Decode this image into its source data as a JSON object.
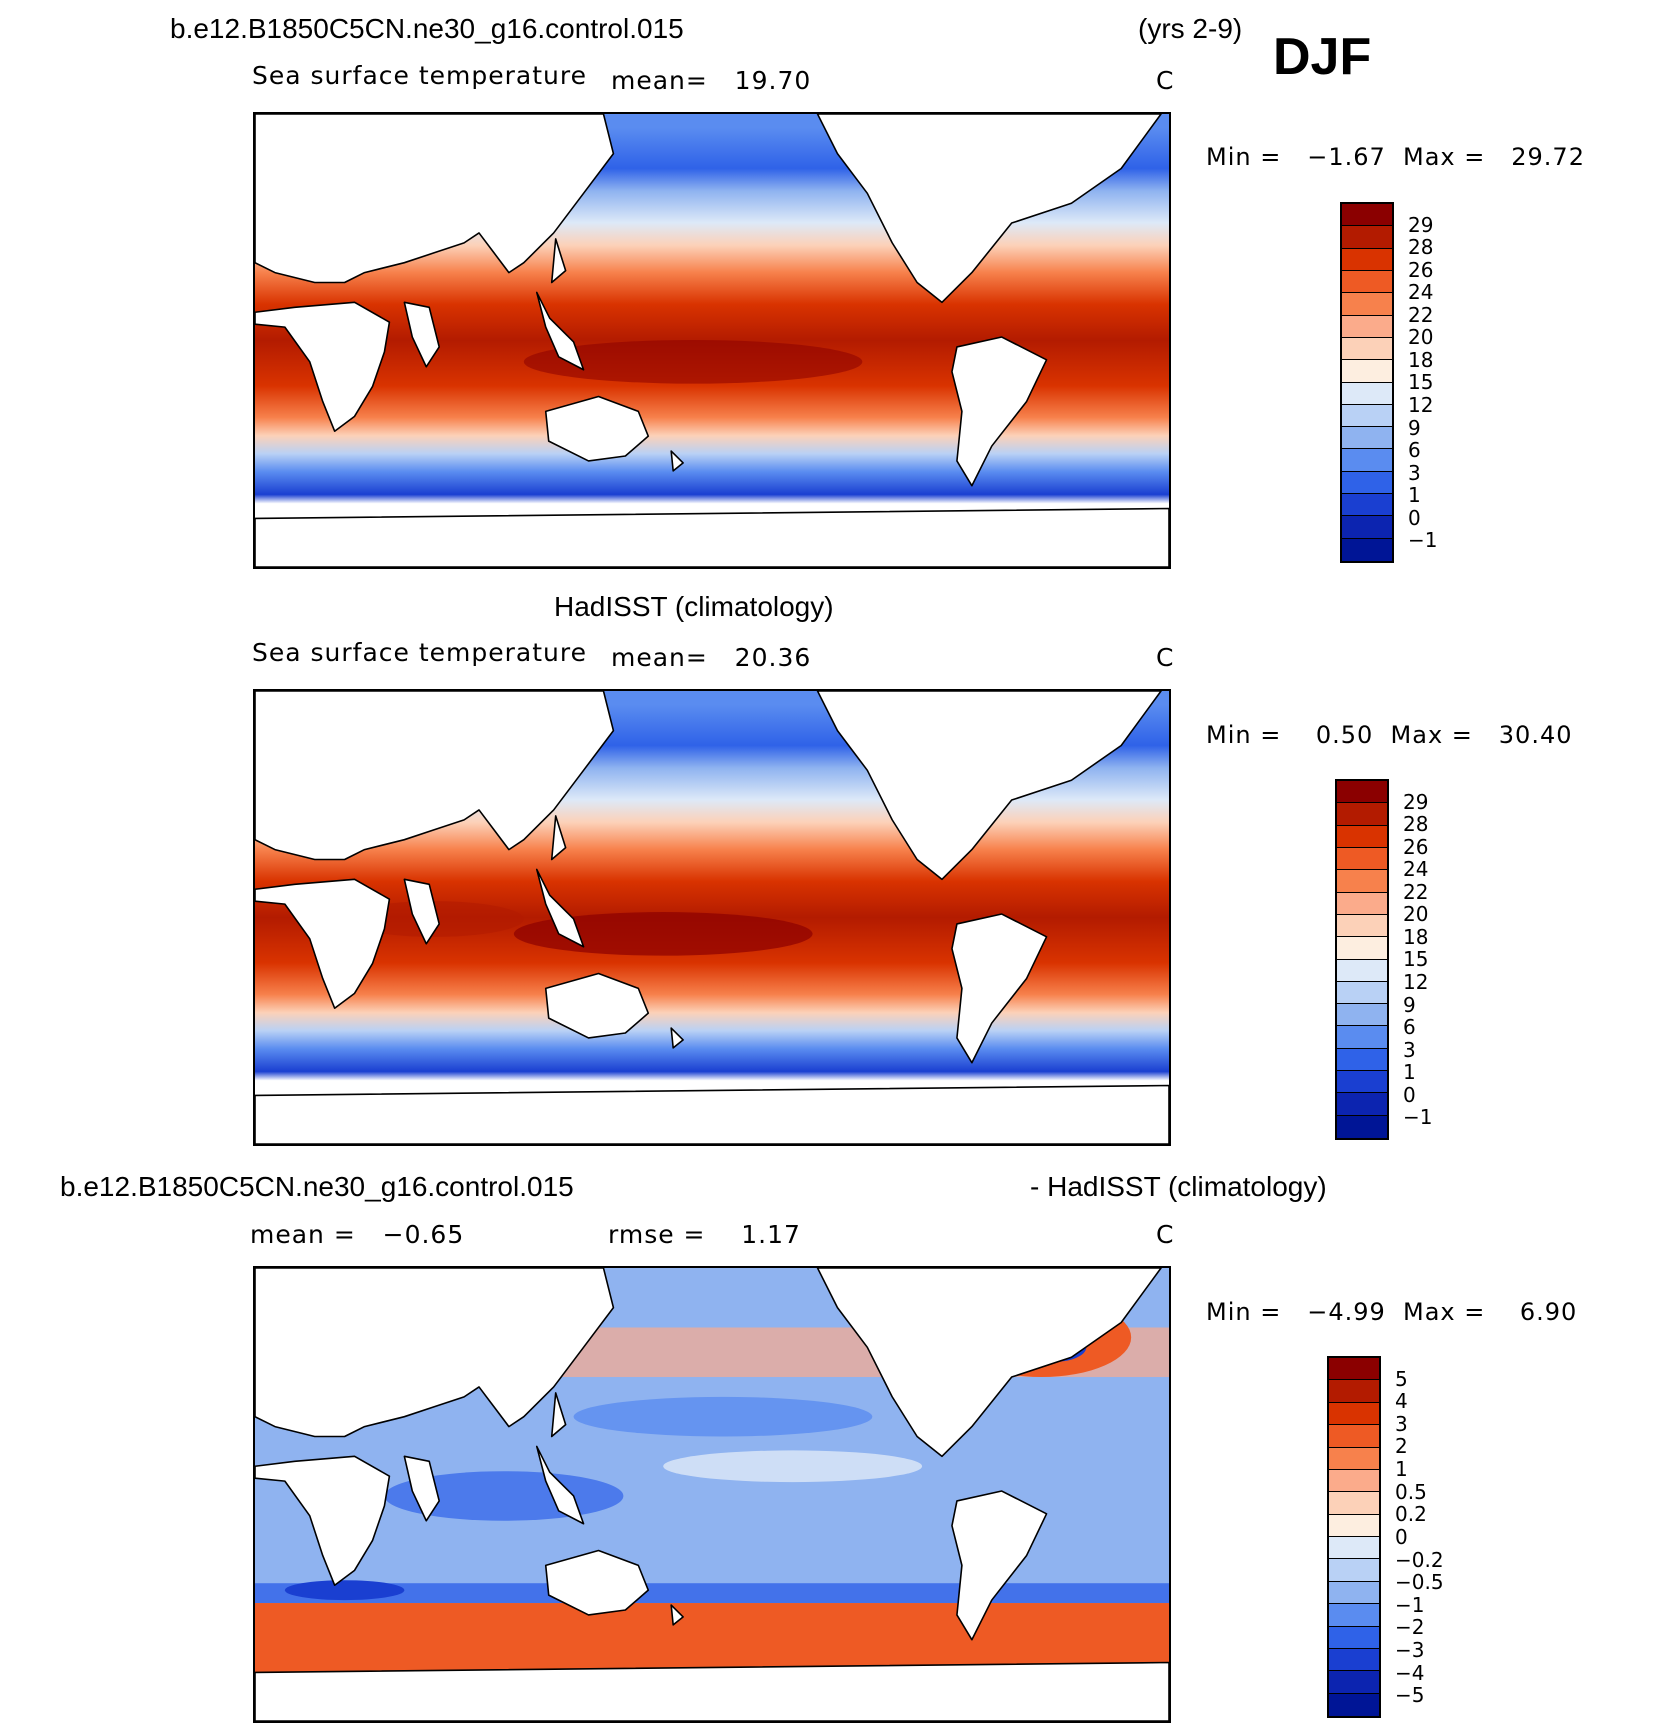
{
  "header": {
    "case_name": "b.e12.B1850C5CN.ne30_g16.control.015",
    "years": "(yrs 2-9)",
    "season": "DJF"
  },
  "panels": [
    {
      "id": "model",
      "title": "",
      "variable": "Sea surface temperature",
      "stat_text": "mean=   19.70",
      "units": "C",
      "minmax_text": "Min =   −1.67  Max =   29.72",
      "colorbar": {
        "colors": [
          "#8b0000",
          "#b31b00",
          "#d93300",
          "#ee5a24",
          "#f7814c",
          "#fbab8b",
          "#fcd1b8",
          "#fdeee0",
          "#dde9f8",
          "#b9d1f5",
          "#8fb3f0",
          "#5a8cf0",
          "#2f62e8",
          "#1a3fd1",
          "#0c24b0",
          "#001596"
        ],
        "labels": [
          "29",
          "28",
          "26",
          "24",
          "22",
          "20",
          "18",
          "15",
          "12",
          "9",
          "6",
          "3",
          "1",
          "0",
          "−1"
        ]
      }
    },
    {
      "id": "obs",
      "title": "HadISST (climatology)",
      "variable": "Sea surface temperature",
      "stat_text": "mean=   20.36",
      "units": "C",
      "minmax_text": "Min =    0.50  Max =   30.40",
      "colorbar": {
        "colors": [
          "#8b0000",
          "#b31b00",
          "#d93300",
          "#ee5a24",
          "#f7814c",
          "#fbab8b",
          "#fcd1b8",
          "#fdeee0",
          "#dde9f8",
          "#b9d1f5",
          "#8fb3f0",
          "#5a8cf0",
          "#2f62e8",
          "#1a3fd1",
          "#0c24b0",
          "#001596"
        ],
        "labels": [
          "29",
          "28",
          "26",
          "24",
          "22",
          "20",
          "18",
          "15",
          "12",
          "9",
          "6",
          "3",
          "1",
          "0",
          "−1"
        ]
      }
    },
    {
      "id": "diff",
      "title_left": "b.e12.B1850C5CN.ne30_g16.control.015",
      "title_right": "- HadISST (climatology)",
      "mean_text": "mean =   −0.65",
      "rmse_text": "rmse =    1.17",
      "units": "C",
      "minmax_text": "Min =   −4.99  Max =    6.90",
      "colorbar": {
        "colors": [
          "#8b0000",
          "#b31b00",
          "#d93300",
          "#ee5a24",
          "#f7814c",
          "#fbab8b",
          "#fcd1b8",
          "#fdeee0",
          "#dde9f8",
          "#b9d1f5",
          "#8fb3f0",
          "#5a8cf0",
          "#2f62e8",
          "#1a3fd1",
          "#0c24b0",
          "#001596"
        ],
        "labels": [
          "5",
          "4",
          "3",
          "2",
          "1",
          "0.5",
          "0.2",
          "0",
          "−0.2",
          "−0.5",
          "−1",
          "−2",
          "−3",
          "−4",
          "−5"
        ]
      }
    }
  ],
  "land_color": "#ffffff",
  "coast_color": "#000000"
}
